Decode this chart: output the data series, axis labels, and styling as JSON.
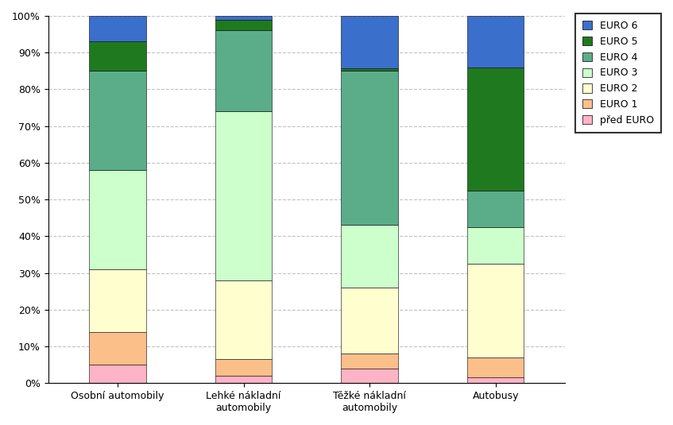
{
  "categories": [
    "Osobní automobily",
    "Lehké nákladní\nautomobily",
    "Těžké nákladní\nautomobily",
    "Autobusy"
  ],
  "series_order": [
    "před EURO",
    "EURO 1",
    "EURO 2",
    "EURO 3",
    "EURO 4",
    "EURO 5",
    "EURO 6"
  ],
  "series": {
    "před EURO": [
      5.0,
      2.0,
      4.0,
      1.5
    ],
    "EURO 1": [
      9.0,
      4.5,
      4.0,
      5.5
    ],
    "EURO 2": [
      17.0,
      21.5,
      18.0,
      25.5
    ],
    "EURO 3": [
      27.0,
      46.0,
      17.0,
      10.0
    ],
    "EURO 4": [
      27.0,
      22.0,
      42.0,
      10.0
    ],
    "EURO 5": [
      8.0,
      3.0,
      0.7,
      33.5
    ],
    "EURO 6": [
      7.0,
      1.0,
      14.3,
      14.0
    ]
  },
  "colors": {
    "před EURO": "#FFB3C6",
    "EURO 1": "#FBBF8A",
    "EURO 2": "#FEFECF",
    "EURO 3": "#CCFFCC",
    "EURO 4": "#5BAD8A",
    "EURO 5": "#1F7A1F",
    "EURO 6": "#3B6FCC"
  },
  "legend_order": [
    "EURO 6",
    "EURO 5",
    "EURO 4",
    "EURO 3",
    "EURO 2",
    "EURO 1",
    "před EURO"
  ],
  "ylim": [
    0,
    100
  ],
  "yticks": [
    0,
    10,
    20,
    30,
    40,
    50,
    60,
    70,
    80,
    90,
    100
  ],
  "ytick_labels": [
    "0%",
    "10%",
    "20%",
    "30%",
    "40%",
    "50%",
    "60%",
    "70%",
    "80%",
    "90%",
    "100%"
  ],
  "bar_width": 0.45,
  "grid_color": "#AAAAAA",
  "bg_color": "#FFFFFF",
  "figsize": [
    8.47,
    5.35
  ],
  "dpi": 100
}
